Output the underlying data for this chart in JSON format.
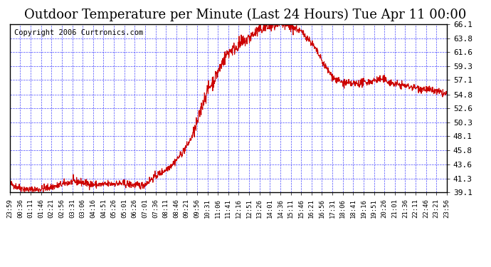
{
  "title": "Outdoor Temperature per Minute (Last 24 Hours) Tue Apr 11 00:00",
  "copyright": "Copyright 2006 Curtronics.com",
  "ylabel_right": true,
  "yticks": [
    39.1,
    41.3,
    43.6,
    45.8,
    48.1,
    50.3,
    52.6,
    54.8,
    57.1,
    59.3,
    61.6,
    63.8,
    66.1
  ],
  "ymin": 39.1,
  "ymax": 66.1,
  "background_color": "#ffffff",
  "plot_bg_color": "#ffffff",
  "grid_color": "#0000ff",
  "line_color": "#cc0000",
  "title_fontsize": 13,
  "copyright_fontsize": 7.5,
  "xtick_labels": [
    "23:59",
    "00:36",
    "01:11",
    "01:46",
    "02:21",
    "02:56",
    "03:31",
    "03:06",
    "04:16",
    "04:51",
    "05:26",
    "05:01",
    "06:26",
    "07:01",
    "07:36",
    "08:11",
    "08:46",
    "09:21",
    "09:56",
    "10:31",
    "11:06",
    "11:41",
    "12:16",
    "12:51",
    "13:26",
    "14:01",
    "14:36",
    "15:11",
    "15:46",
    "16:21",
    "16:56",
    "17:31",
    "18:06",
    "18:41",
    "19:16",
    "19:51",
    "20:26",
    "21:01",
    "21:36",
    "22:11",
    "22:46",
    "23:21",
    "23:56"
  ],
  "n_points": 1440
}
